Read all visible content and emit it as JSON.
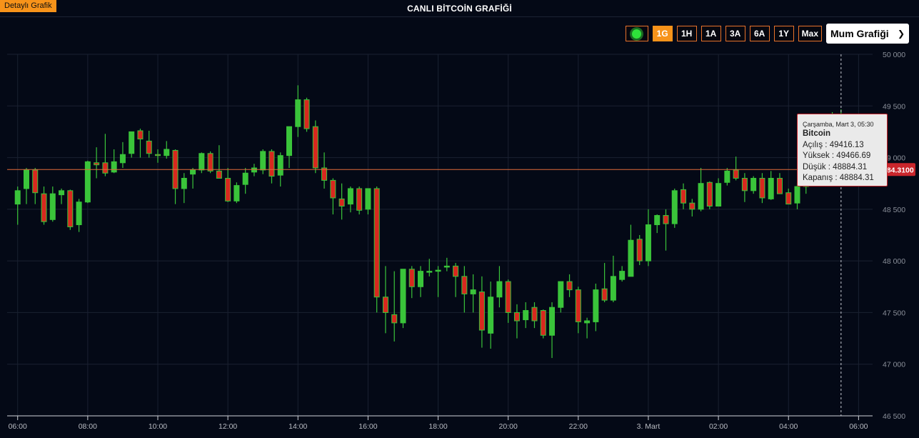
{
  "header": {
    "detail_label": "Detaylı Grafik",
    "title": "CANLI BİTCOİN GRAFİĞİ"
  },
  "toolbar": {
    "buttons": [
      "1G",
      "1H",
      "1A",
      "3A",
      "6A",
      "1Y",
      "Max"
    ],
    "active": "1G",
    "chart_type_label": "Mum Grafiği"
  },
  "tooltip": {
    "time": "Çarşamba, Mart 3, 05:30",
    "name": "Bitcoin",
    "open": "Açılış : 49416.13",
    "high": "Yüksek : 49466.69",
    "low": "Düşük : 48884.31",
    "close": "Kapanış : 48884.31"
  },
  "colors": {
    "up": "#3ac43a",
    "down": "#d8281f",
    "grid": "#1a2131",
    "price_line": "#e06a3a",
    "price_badge": "#c9262c",
    "accent": "#f7931a"
  },
  "chart_data": {
    "type": "candlestick",
    "title": "CANLI BİTCOİN GRAFİĞİ",
    "ylim": [
      46500,
      50000
    ],
    "y_ticks": [
      "50 000",
      "49 500",
      "49 000",
      "48 500",
      "48 000",
      "47 500",
      "47 000",
      "46 500"
    ],
    "y_tick_values": [
      50000,
      49500,
      49000,
      48500,
      48000,
      47500,
      47000,
      46500
    ],
    "x_tick_labels": [
      "06:00",
      "08:00",
      "10:00",
      "12:00",
      "14:00",
      "16:00",
      "18:00",
      "20:00",
      "22:00",
      "3. Mart",
      "02:00",
      "04:00",
      "06:00"
    ],
    "x_tick_hours": [
      6,
      8,
      10,
      12,
      14,
      16,
      18,
      20,
      22,
      24,
      26,
      28,
      30
    ],
    "x_range_hours": [
      5.7,
      30.4
    ],
    "current_price": 48884.31,
    "current_price_label": "48884.3100",
    "crosshair_hour": 29.5,
    "candles": [
      {
        "t": 6.0,
        "o": 48550,
        "h": 48720,
        "l": 48350,
        "c": 48680
      },
      {
        "t": 6.25,
        "o": 48700,
        "h": 48900,
        "l": 48550,
        "c": 48880
      },
      {
        "t": 6.5,
        "o": 48880,
        "h": 48900,
        "l": 48550,
        "c": 48660
      },
      {
        "t": 6.75,
        "o": 48650,
        "h": 48720,
        "l": 48350,
        "c": 48380
      },
      {
        "t": 7.0,
        "o": 48400,
        "h": 48720,
        "l": 48380,
        "c": 48650
      },
      {
        "t": 7.25,
        "o": 48640,
        "h": 48700,
        "l": 48550,
        "c": 48680
      },
      {
        "t": 7.5,
        "o": 48680,
        "h": 48690,
        "l": 48300,
        "c": 48330
      },
      {
        "t": 7.75,
        "o": 48350,
        "h": 48600,
        "l": 48280,
        "c": 48570
      },
      {
        "t": 8.0,
        "o": 48570,
        "h": 48970,
        "l": 48560,
        "c": 48960
      },
      {
        "t": 8.25,
        "o": 48950,
        "h": 49100,
        "l": 48800,
        "c": 48930
      },
      {
        "t": 8.5,
        "o": 48950,
        "h": 49230,
        "l": 48820,
        "c": 48850
      },
      {
        "t": 8.75,
        "o": 48860,
        "h": 49080,
        "l": 48850,
        "c": 48960
      },
      {
        "t": 9.0,
        "o": 48950,
        "h": 49150,
        "l": 48900,
        "c": 49030
      },
      {
        "t": 9.25,
        "o": 49040,
        "h": 49250,
        "l": 49000,
        "c": 49250
      },
      {
        "t": 9.5,
        "o": 49260,
        "h": 49280,
        "l": 49000,
        "c": 49180
      },
      {
        "t": 9.75,
        "o": 49160,
        "h": 49260,
        "l": 49000,
        "c": 49040
      },
      {
        "t": 10.0,
        "o": 49030,
        "h": 49080,
        "l": 48950,
        "c": 49020
      },
      {
        "t": 10.25,
        "o": 49020,
        "h": 49160,
        "l": 48990,
        "c": 49080
      },
      {
        "t": 10.5,
        "o": 49070,
        "h": 49080,
        "l": 48550,
        "c": 48700
      },
      {
        "t": 10.75,
        "o": 48700,
        "h": 48850,
        "l": 48560,
        "c": 48800
      },
      {
        "t": 11.0,
        "o": 48840,
        "h": 48900,
        "l": 48700,
        "c": 48880
      },
      {
        "t": 11.25,
        "o": 48880,
        "h": 49050,
        "l": 48850,
        "c": 49040
      },
      {
        "t": 11.5,
        "o": 49040,
        "h": 49060,
        "l": 48850,
        "c": 48870
      },
      {
        "t": 11.75,
        "o": 48870,
        "h": 49120,
        "l": 48800,
        "c": 48800
      },
      {
        "t": 12.0,
        "o": 48800,
        "h": 48900,
        "l": 48570,
        "c": 48580
      },
      {
        "t": 12.25,
        "o": 48580,
        "h": 48760,
        "l": 48560,
        "c": 48730
      },
      {
        "t": 12.5,
        "o": 48740,
        "h": 48900,
        "l": 48650,
        "c": 48850
      },
      {
        "t": 12.75,
        "o": 48860,
        "h": 48940,
        "l": 48820,
        "c": 48900
      },
      {
        "t": 13.0,
        "o": 48880,
        "h": 49080,
        "l": 48840,
        "c": 49060
      },
      {
        "t": 13.25,
        "o": 49060,
        "h": 49080,
        "l": 48750,
        "c": 48820
      },
      {
        "t": 13.5,
        "o": 48830,
        "h": 49050,
        "l": 48720,
        "c": 49020
      },
      {
        "t": 13.75,
        "o": 49020,
        "h": 49300,
        "l": 48900,
        "c": 49300
      },
      {
        "t": 14.0,
        "o": 49300,
        "h": 49700,
        "l": 49200,
        "c": 49560
      },
      {
        "t": 14.25,
        "o": 49560,
        "h": 49580,
        "l": 49250,
        "c": 49280
      },
      {
        "t": 14.5,
        "o": 49300,
        "h": 49360,
        "l": 48850,
        "c": 48900
      },
      {
        "t": 14.75,
        "o": 48900,
        "h": 49050,
        "l": 48700,
        "c": 48780
      },
      {
        "t": 15.0,
        "o": 48780,
        "h": 48800,
        "l": 48450,
        "c": 48610
      },
      {
        "t": 15.25,
        "o": 48600,
        "h": 48750,
        "l": 48400,
        "c": 48530
      },
      {
        "t": 15.5,
        "o": 48550,
        "h": 48720,
        "l": 48470,
        "c": 48700
      },
      {
        "t": 15.75,
        "o": 48700,
        "h": 48720,
        "l": 48450,
        "c": 48490
      },
      {
        "t": 16.0,
        "o": 48500,
        "h": 48700,
        "l": 48450,
        "c": 48700
      },
      {
        "t": 16.25,
        "o": 48700,
        "h": 48720,
        "l": 47500,
        "c": 47650
      },
      {
        "t": 16.5,
        "o": 47650,
        "h": 47950,
        "l": 47300,
        "c": 47500
      },
      {
        "t": 16.75,
        "o": 47480,
        "h": 47900,
        "l": 47220,
        "c": 47400
      },
      {
        "t": 17.0,
        "o": 47400,
        "h": 47900,
        "l": 47350,
        "c": 47920
      },
      {
        "t": 17.25,
        "o": 47920,
        "h": 47950,
        "l": 47640,
        "c": 47750
      },
      {
        "t": 17.5,
        "o": 47750,
        "h": 47950,
        "l": 47650,
        "c": 47900
      },
      {
        "t": 17.75,
        "o": 47900,
        "h": 48020,
        "l": 47850,
        "c": 47900
      },
      {
        "t": 18.0,
        "o": 47900,
        "h": 47950,
        "l": 47650,
        "c": 47910
      },
      {
        "t": 18.25,
        "o": 47950,
        "h": 48030,
        "l": 47900,
        "c": 47950
      },
      {
        "t": 18.5,
        "o": 47950,
        "h": 47980,
        "l": 47650,
        "c": 47850
      },
      {
        "t": 18.75,
        "o": 47850,
        "h": 47950,
        "l": 47500,
        "c": 47680
      },
      {
        "t": 19.0,
        "o": 47680,
        "h": 47870,
        "l": 47500,
        "c": 47720
      },
      {
        "t": 19.25,
        "o": 47700,
        "h": 47850,
        "l": 47160,
        "c": 47330
      },
      {
        "t": 19.5,
        "o": 47300,
        "h": 47800,
        "l": 47150,
        "c": 47650
      },
      {
        "t": 19.75,
        "o": 47650,
        "h": 47950,
        "l": 47550,
        "c": 47800
      },
      {
        "t": 20.0,
        "o": 47800,
        "h": 47820,
        "l": 47400,
        "c": 47500
      },
      {
        "t": 20.25,
        "o": 47500,
        "h": 47580,
        "l": 47250,
        "c": 47420
      },
      {
        "t": 20.5,
        "o": 47430,
        "h": 47600,
        "l": 47350,
        "c": 47520
      },
      {
        "t": 20.75,
        "o": 47550,
        "h": 47600,
        "l": 47350,
        "c": 47420
      },
      {
        "t": 21.0,
        "o": 47520,
        "h": 47530,
        "l": 47250,
        "c": 47280
      },
      {
        "t": 21.25,
        "o": 47280,
        "h": 47600,
        "l": 47060,
        "c": 47550
      },
      {
        "t": 21.5,
        "o": 47550,
        "h": 47800,
        "l": 47500,
        "c": 47800
      },
      {
        "t": 21.75,
        "o": 47800,
        "h": 47870,
        "l": 47650,
        "c": 47720
      },
      {
        "t": 22.0,
        "o": 47720,
        "h": 47750,
        "l": 47300,
        "c": 47410
      },
      {
        "t": 22.25,
        "o": 47400,
        "h": 47450,
        "l": 47250,
        "c": 47420
      },
      {
        "t": 22.5,
        "o": 47410,
        "h": 47780,
        "l": 47320,
        "c": 47720
      },
      {
        "t": 22.75,
        "o": 47730,
        "h": 47980,
        "l": 47600,
        "c": 47620
      },
      {
        "t": 23.0,
        "o": 47620,
        "h": 48050,
        "l": 47600,
        "c": 47850
      },
      {
        "t": 23.25,
        "o": 47820,
        "h": 47950,
        "l": 47800,
        "c": 47900
      },
      {
        "t": 23.5,
        "o": 47850,
        "h": 48350,
        "l": 47850,
        "c": 48200
      },
      {
        "t": 23.75,
        "o": 48210,
        "h": 48250,
        "l": 47960,
        "c": 48000
      },
      {
        "t": 24.0,
        "o": 48000,
        "h": 48500,
        "l": 47950,
        "c": 48350
      },
      {
        "t": 24.25,
        "o": 48350,
        "h": 48450,
        "l": 48270,
        "c": 48440
      },
      {
        "t": 24.5,
        "o": 48440,
        "h": 48500,
        "l": 48100,
        "c": 48360
      },
      {
        "t": 24.75,
        "o": 48360,
        "h": 48700,
        "l": 48320,
        "c": 48680
      },
      {
        "t": 25.0,
        "o": 48690,
        "h": 48750,
        "l": 48500,
        "c": 48560
      },
      {
        "t": 25.25,
        "o": 48560,
        "h": 48600,
        "l": 48430,
        "c": 48500
      },
      {
        "t": 25.5,
        "o": 48500,
        "h": 48900,
        "l": 48480,
        "c": 48750
      },
      {
        "t": 25.75,
        "o": 48760,
        "h": 48770,
        "l": 48500,
        "c": 48530
      },
      {
        "t": 26.0,
        "o": 48530,
        "h": 48800,
        "l": 48530,
        "c": 48750
      },
      {
        "t": 26.25,
        "o": 48760,
        "h": 48900,
        "l": 48730,
        "c": 48870
      },
      {
        "t": 26.5,
        "o": 48880,
        "h": 49010,
        "l": 48780,
        "c": 48800
      },
      {
        "t": 26.75,
        "o": 48800,
        "h": 48850,
        "l": 48570,
        "c": 48680
      },
      {
        "t": 27.0,
        "o": 48680,
        "h": 48820,
        "l": 48650,
        "c": 48800
      },
      {
        "t": 27.25,
        "o": 48800,
        "h": 48850,
        "l": 48560,
        "c": 48610
      },
      {
        "t": 27.5,
        "o": 48600,
        "h": 48870,
        "l": 48590,
        "c": 48800
      },
      {
        "t": 27.75,
        "o": 48800,
        "h": 48850,
        "l": 48680,
        "c": 48650
      },
      {
        "t": 28.0,
        "o": 48660,
        "h": 48700,
        "l": 48550,
        "c": 48550
      },
      {
        "t": 28.25,
        "o": 48560,
        "h": 48750,
        "l": 48500,
        "c": 48720
      },
      {
        "t": 28.5,
        "o": 48720,
        "h": 49140,
        "l": 48650,
        "c": 49140
      },
      {
        "t": 28.75,
        "o": 49140,
        "h": 49160,
        "l": 48880,
        "c": 48880
      },
      {
        "t": 29.0,
        "o": 48880,
        "h": 49350,
        "l": 48860,
        "c": 49320
      },
      {
        "t": 29.25,
        "o": 49320,
        "h": 49440,
        "l": 49000,
        "c": 49150
      },
      {
        "t": 29.5,
        "o": 49416.13,
        "h": 49466.69,
        "l": 48884.31,
        "c": 48884.31
      },
      {
        "t": 29.75,
        "o": 48890,
        "h": 49350,
        "l": 48880,
        "c": 49300
      },
      {
        "t": 30.0,
        "o": 49300,
        "h": 49350,
        "l": 48900,
        "c": 48950
      }
    ]
  }
}
